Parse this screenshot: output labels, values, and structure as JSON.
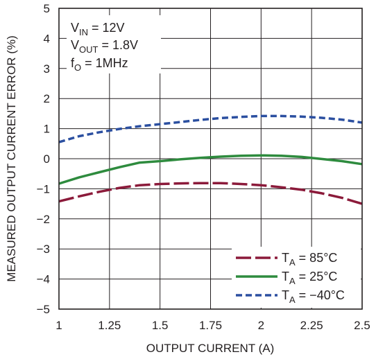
{
  "chart_data": {
    "type": "line",
    "title": "",
    "xlabel": "OUTPUT CURRENT (A)",
    "ylabel": "MEASURED OUTPUT CURRENT ERROR (%)",
    "xlim": [
      1,
      2.5
    ],
    "ylim": [
      -5,
      5
    ],
    "x_ticks": [
      "1",
      "1.25",
      "1.5",
      "1.75",
      "2",
      "2.25",
      "2.5"
    ],
    "y_ticks": [
      "5",
      "4",
      "3",
      "2",
      "1",
      "0",
      "−1",
      "−2",
      "−3",
      "−4",
      "−5"
    ],
    "grid": true,
    "legend_position": "bottom-right",
    "annotations": {
      "vin": {
        "main": "V",
        "sub": "IN",
        "rest": " = 12V"
      },
      "vout": {
        "main": "V",
        "sub": "OUT",
        "rest": " = 1.8V"
      },
      "fo": {
        "main": "f",
        "sub": "O",
        "rest": " = 1MHz"
      }
    },
    "series": [
      {
        "name": "85°C",
        "legend_main": "T",
        "legend_sub": "A",
        "legend_rest": " = 85°C",
        "color": "#8b1a3a",
        "dash": "long",
        "x": [
          1.0,
          1.1,
          1.2,
          1.3,
          1.4,
          1.5,
          1.6,
          1.7,
          1.8,
          1.9,
          2.0,
          2.1,
          2.2,
          2.3,
          2.4,
          2.5
        ],
        "y": [
          -1.42,
          -1.25,
          -1.1,
          -0.97,
          -0.88,
          -0.84,
          -0.82,
          -0.81,
          -0.81,
          -0.84,
          -0.88,
          -0.95,
          -1.03,
          -1.15,
          -1.3,
          -1.5
        ]
      },
      {
        "name": "25°C",
        "legend_main": "T",
        "legend_sub": "A",
        "legend_rest": " = 25°C",
        "color": "#2e8b3e",
        "dash": "solid",
        "x": [
          1.0,
          1.1,
          1.2,
          1.3,
          1.4,
          1.5,
          1.6,
          1.7,
          1.8,
          1.9,
          2.0,
          2.1,
          2.2,
          2.3,
          2.4,
          2.5
        ],
        "y": [
          -0.83,
          -0.62,
          -0.45,
          -0.28,
          -0.13,
          -0.08,
          -0.02,
          0.03,
          0.07,
          0.1,
          0.11,
          0.1,
          0.06,
          -0.01,
          -0.08,
          -0.18
        ]
      },
      {
        "name": "−40°C",
        "legend_main": "T",
        "legend_sub": "A",
        "legend_rest": " = −40°C",
        "color": "#2b4fa0",
        "dash": "short",
        "x": [
          1.0,
          1.1,
          1.2,
          1.3,
          1.4,
          1.5,
          1.6,
          1.7,
          1.8,
          1.9,
          2.0,
          2.1,
          2.2,
          2.3,
          2.4,
          2.5
        ],
        "y": [
          0.55,
          0.75,
          0.88,
          0.99,
          1.08,
          1.15,
          1.22,
          1.29,
          1.35,
          1.39,
          1.42,
          1.42,
          1.4,
          1.36,
          1.3,
          1.2
        ]
      }
    ]
  }
}
